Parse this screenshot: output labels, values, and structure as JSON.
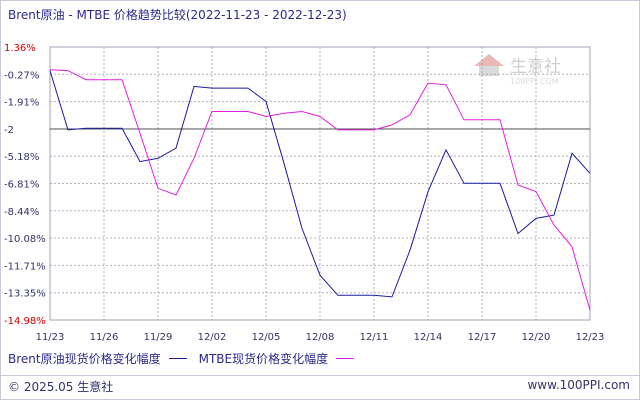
{
  "header": {
    "title": "Brent原油 - MTBE 价格趋势比较(2022-11-23 - 2022-12-23)"
  },
  "watermark": {
    "brand": "生意社",
    "url": "100PPI.COM"
  },
  "footer": {
    "copyright": "© 2025.05 生意社",
    "website": "www.100PPI.com"
  },
  "chart_data": {
    "type": "line",
    "x": [
      "11/23",
      "11/24",
      "11/25",
      "11/26",
      "11/27",
      "11/28",
      "11/29",
      "11/30",
      "12/01",
      "12/02",
      "12/03",
      "12/04",
      "12/05",
      "12/06",
      "12/07",
      "12/08",
      "12/09",
      "12/10",
      "12/11",
      "12/12",
      "12/13",
      "12/14",
      "12/15",
      "12/16",
      "12/17",
      "12/18",
      "12/19",
      "12/20",
      "12/21",
      "12/22",
      "12/23"
    ],
    "x_tick_labels": [
      "11/23",
      "11/26",
      "11/29",
      "12/02",
      "12/05",
      "12/08",
      "12/11",
      "12/14",
      "12/17",
      "12/20",
      "12/23"
    ],
    "y_tick_labels": [
      "1.36%",
      "-0.27%",
      "-1.91%",
      "-2",
      "-5.18%",
      "-6.81%",
      "-8.44%",
      "-10.08%",
      "-11.71%",
      "-13.35%",
      "-14.98%"
    ],
    "ylim": [
      -14.98,
      1.36
    ],
    "reference_line": -3.55,
    "grid": true,
    "legend_position": "bottom",
    "series": [
      {
        "name": "Brent原油现货价格变化幅度",
        "color": "#1a1aa0",
        "values": [
          -0.05,
          -3.6,
          -3.5,
          -3.5,
          -3.5,
          -5.5,
          -5.3,
          -4.7,
          -1.0,
          -1.1,
          -1.1,
          -1.1,
          -1.9,
          -5.6,
          -9.5,
          -12.3,
          -13.5,
          -13.5,
          -13.5,
          -13.6,
          -10.8,
          -7.3,
          -4.8,
          -6.8,
          -6.8,
          -6.8,
          -9.8,
          -8.9,
          -8.7,
          -5.0,
          -6.2
        ]
      },
      {
        "name": "MTBE现货价格变化幅度",
        "color": "#e020e0",
        "values": [
          0.0,
          -0.05,
          -0.6,
          -0.6,
          -0.6,
          -3.8,
          -7.1,
          -7.5,
          -5.3,
          -2.5,
          -2.5,
          -2.5,
          -2.8,
          -2.6,
          -2.5,
          -2.8,
          -3.6,
          -3.6,
          -3.6,
          -3.3,
          -2.7,
          -0.8,
          -0.9,
          -3.0,
          -3.0,
          -3.0,
          -6.9,
          -7.3,
          -9.3,
          -10.6,
          -14.4
        ]
      }
    ]
  }
}
